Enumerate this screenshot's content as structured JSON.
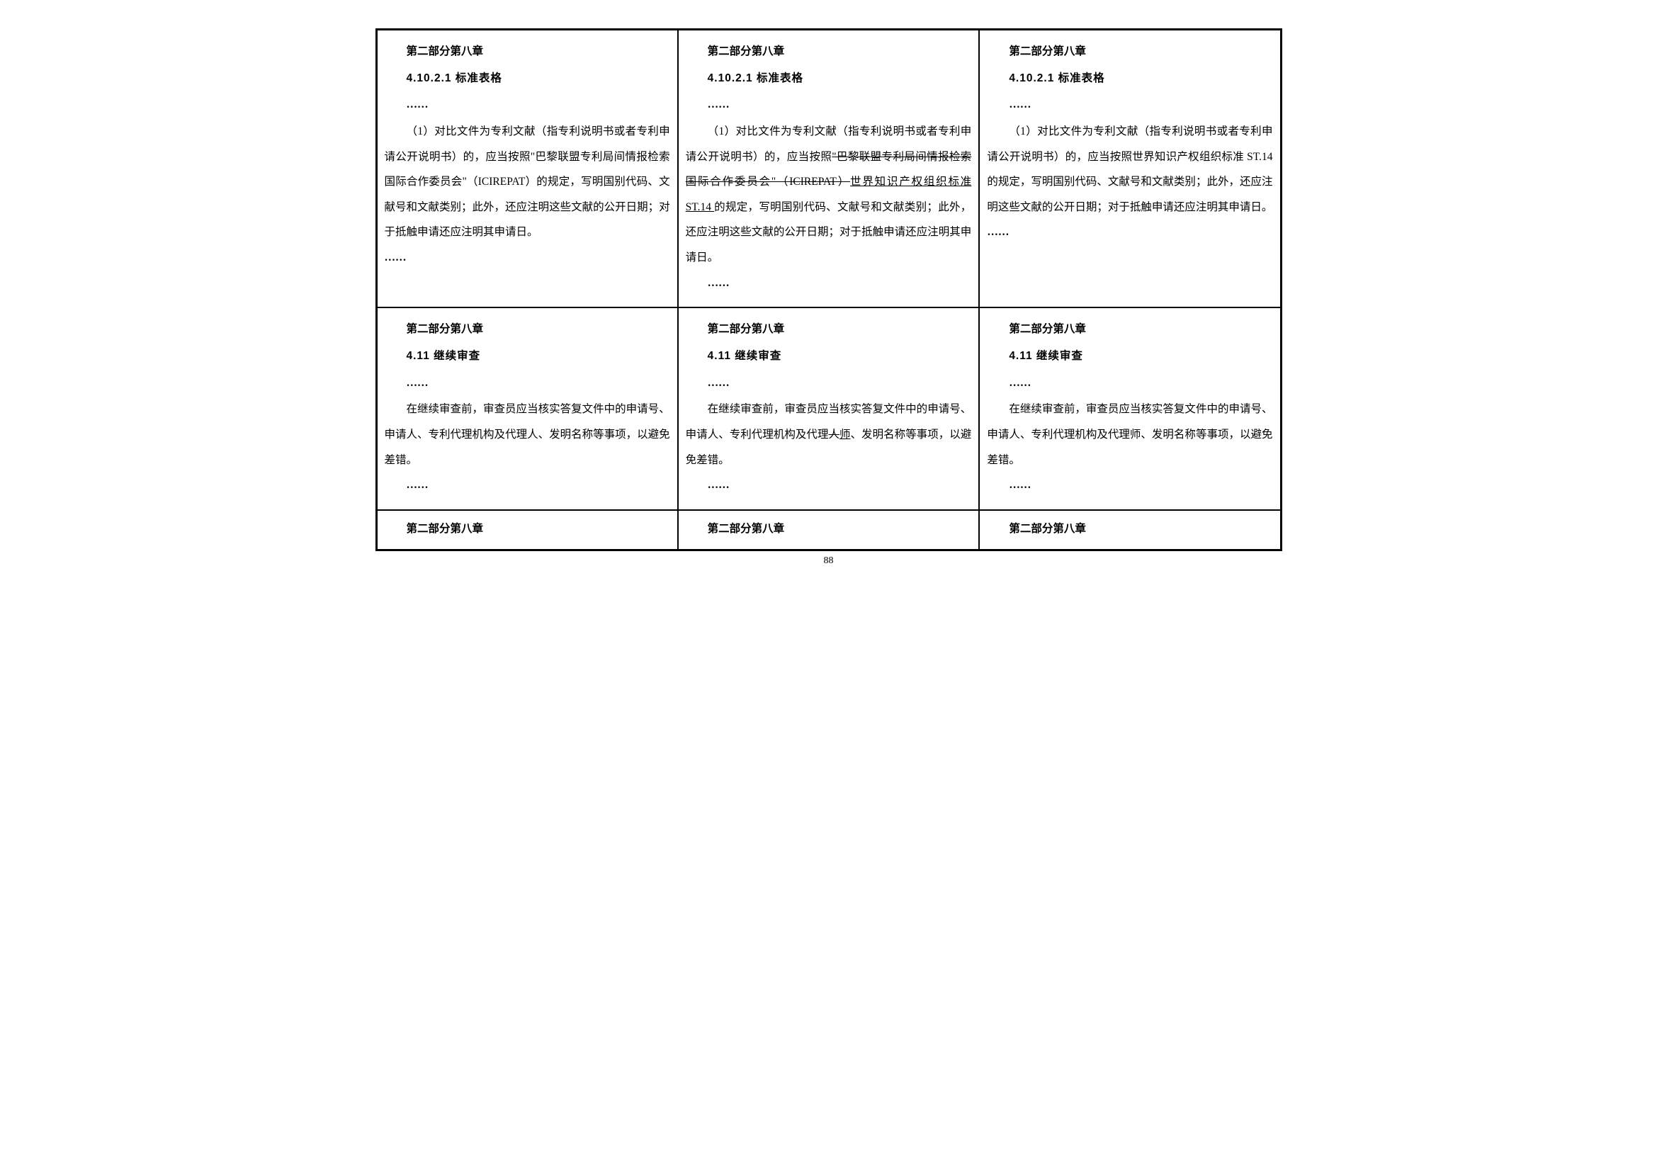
{
  "page_number": "88",
  "colors": {
    "text": "#000000",
    "border": "#000000",
    "background": "#ffffff"
  },
  "typography": {
    "body_font": "SimSun",
    "heading_font": "SimHei",
    "body_fontsize": 15.5,
    "line_height": 2.3
  },
  "rows": [
    {
      "cells": [
        {
          "heading": "第二部分第八章",
          "subheading": "4.10.2.1 标准表格",
          "ellipsis_top": "……",
          "body_html": "（1）对比文件为专利文献（指专利说明书或者专利申请公开说明书）的，应当按照\"巴黎联盟专利局间情报检索国际合作委员会\"（ICIREPAT）的规定，写明国别代码、文献号和文献类别；此外，还应注明这些文献的公开日期；对于抵触申请还应注明其申请日。",
          "ellipsis_bottom": "……",
          "ellipsis_bottom_indent": false
        },
        {
          "heading": "第二部分第八章",
          "subheading": "4.10.2.1 标准表格",
          "ellipsis_top": "……",
          "body_html": "（1）对比文件为专利文献（指专利说明书或者专利申请公开说明书）的，应当按照<span class=\"strike\">\"巴黎联盟专利局间情报检索国际合作委员会\"（ICIREPAT）</span><span class=\"underline\">世界知识产权组织标准 ST.14 </span>的规定，写明国别代码、文献号和文献类别；此外，还应注明这些文献的公开日期；对于抵触申请还应注明其申请日。",
          "ellipsis_bottom": "……",
          "ellipsis_bottom_indent": true
        },
        {
          "heading": "第二部分第八章",
          "subheading": "4.10.2.1 标准表格",
          "ellipsis_top": "……",
          "body_html": "（1）对比文件为专利文献（指专利说明书或者专利申请公开说明书）的，应当按照世界知识产权组织标准 ST.14 的规定，写明国别代码、文献号和文献类别；此外，还应注明这些文献的公开日期；对于抵触申请还应注明其申请日。",
          "ellipsis_bottom": "……",
          "ellipsis_bottom_indent": false
        }
      ]
    },
    {
      "cells": [
        {
          "heading": "第二部分第八章",
          "subheading": "4.11 继续审查",
          "ellipsis_top": "……",
          "body_html": "在继续审查前，审查员应当核实答复文件中的申请号、申请人、专利代理机构及代理人、发明名称等事项，以避免差错。",
          "ellipsis_bottom": "……",
          "ellipsis_bottom_indent": true
        },
        {
          "heading": "第二部分第八章",
          "subheading": "4.11 继续审查",
          "ellipsis_top": "……",
          "body_html": "在继续审查前，审查员应当核实答复文件中的申请号、申请人、专利代理机构及代理<span class=\"strike\">人</span><span class=\"underline\">师</span>、发明名称等事项，以避免差错。",
          "ellipsis_bottom": "……",
          "ellipsis_bottom_indent": true
        },
        {
          "heading": "第二部分第八章",
          "subheading": "4.11 继续审查",
          "ellipsis_top": "……",
          "body_html": "在继续审查前，审查员应当核实答复文件中的申请号、申请人、专利代理机构及代理师、发明名称等事项，以避免差错。",
          "ellipsis_bottom": "……",
          "ellipsis_bottom_indent": true
        }
      ]
    },
    {
      "cells": [
        {
          "heading": "第二部分第八章"
        },
        {
          "heading": "第二部分第八章"
        },
        {
          "heading": "第二部分第八章"
        }
      ]
    }
  ]
}
